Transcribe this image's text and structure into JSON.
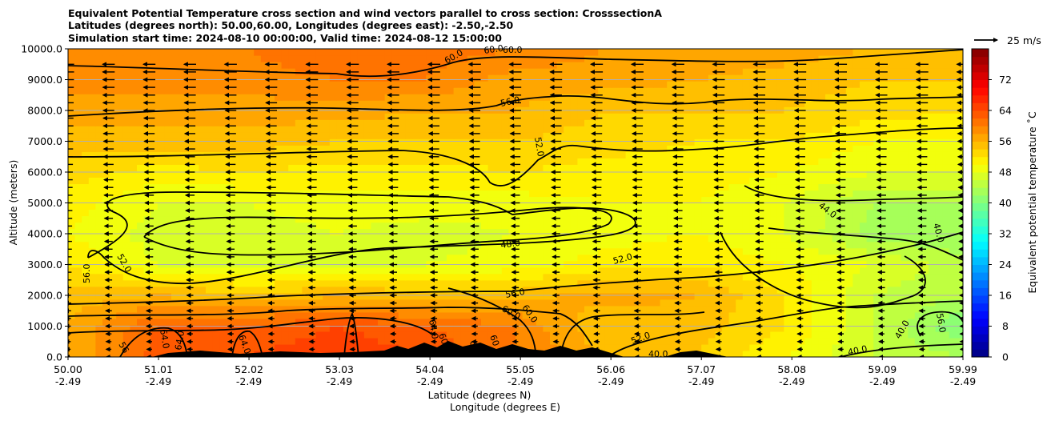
{
  "chart_data": {
    "type": "contourf",
    "title_lines": [
      "Equivalent Potential Temperature cross section and wind vectors parallel to cross section: CrosssectionA",
      "Latitudes (degrees north): 50.00,60.00, Longitudes (degrees east): -2.50,-2.50",
      "Simulation start time: 2024-08-10 00:00:00, Valid time: 2024-08-12 15:00:00"
    ],
    "xlabel": "Latitude (degrees N)",
    "xlabel2": "Longitude (degrees E)",
    "ylabel": "Altitude (meters)",
    "x_ticks": [
      {
        "lat": 50.0,
        "lat_label": "50.00",
        "lon_label": "-2.49"
      },
      {
        "lat": 51.01,
        "lat_label": "51.01",
        "lon_label": "-2.49"
      },
      {
        "lat": 52.02,
        "lat_label": "52.02",
        "lon_label": "-2.49"
      },
      {
        "lat": 53.03,
        "lat_label": "53.03",
        "lon_label": "-2.49"
      },
      {
        "lat": 54.04,
        "lat_label": "54.04",
        "lon_label": "-2.49"
      },
      {
        "lat": 55.05,
        "lat_label": "55.05",
        "lon_label": "-2.49"
      },
      {
        "lat": 56.06,
        "lat_label": "56.06",
        "lon_label": "-2.49"
      },
      {
        "lat": 57.07,
        "lat_label": "57.07",
        "lon_label": "-2.49"
      },
      {
        "lat": 58.08,
        "lat_label": "58.08",
        "lon_label": "-2.49"
      },
      {
        "lat": 59.09,
        "lat_label": "59.09",
        "lon_label": "-2.49"
      },
      {
        "lat": 59.99,
        "lat_label": "59.99",
        "lon_label": "-2.49"
      }
    ],
    "xlim": [
      50.0,
      59.99
    ],
    "y_ticks": [
      0,
      1000,
      2000,
      3000,
      4000,
      5000,
      6000,
      7000,
      8000,
      9000,
      10000
    ],
    "y_tick_labels": [
      "0.0",
      "1000.0",
      "2000.0",
      "3000.0",
      "4000.0",
      "5000.0",
      "6000.0",
      "7000.0",
      "8000.0",
      "9000.0",
      "10000.0"
    ],
    "ylim": [
      0,
      10000
    ],
    "grid_y": true,
    "colorbar": {
      "label": "Equivalent potential temperature $^\\circ$C",
      "label_text": "Equivalent potential temperature ˚C",
      "range": [
        0,
        80
      ],
      "ticks": [
        0,
        8,
        16,
        24,
        32,
        40,
        48,
        56,
        64,
        72
      ],
      "tick_labels": [
        "0",
        "8",
        "16",
        "24",
        "32",
        "40",
        "48",
        "56",
        "64",
        "72"
      ],
      "colormap": "jet"
    },
    "quiver_key": {
      "label": "25 m/s",
      "speed": 25
    },
    "background_field_samples": {
      "lat": [
        50.0,
        51.0,
        52.0,
        53.0,
        54.0,
        55.0,
        56.0,
        57.0,
        58.0,
        59.0,
        60.0
      ],
      "altitude": [
        0,
        1000,
        2000,
        3000,
        4000,
        5000,
        6000,
        7000,
        8000,
        9000,
        10000
      ],
      "theta_e": [
        [
          56,
          63,
          64,
          66,
          64,
          60,
          56,
          54,
          50,
          46,
          44
        ],
        [
          56,
          62,
          62,
          64,
          62,
          60,
          54,
          55,
          52,
          46,
          40
        ],
        [
          55,
          56,
          55,
          56,
          55,
          55,
          57,
          56,
          52,
          46,
          44
        ],
        [
          52,
          48,
          47,
          47,
          48,
          49,
          51,
          52,
          50,
          48,
          45
        ],
        [
          50,
          47,
          47,
          48,
          47,
          48,
          49,
          50,
          48,
          43,
          42
        ],
        [
          51,
          48,
          48,
          49,
          49,
          49,
          50,
          50,
          48,
          44,
          44
        ],
        [
          53,
          51,
          52,
          51,
          51,
          52,
          51,
          51,
          50,
          48,
          48
        ],
        [
          55,
          55,
          55,
          54,
          54,
          54,
          53,
          52,
          52,
          50,
          50
        ],
        [
          57,
          57,
          57,
          57,
          56,
          56,
          54,
          54,
          54,
          53,
          52
        ],
        [
          59,
          59,
          59,
          60,
          60,
          57,
          57,
          56,
          55,
          54,
          54
        ],
        [
          60,
          60,
          60,
          62,
          61,
          60,
          58,
          58,
          57,
          56,
          55
        ]
      ]
    },
    "contour_levels": [
      40,
      44,
      48,
      52,
      56,
      60,
      64
    ],
    "contour_labels_visible": [
      "60.0",
      "60.0",
      "60.0",
      "56.0",
      "52.0",
      "44.0",
      "48.0",
      "52.0",
      "52.0",
      "56.0",
      "40.0",
      "56.0",
      "60.0",
      "60.0",
      "40.0",
      "52.0",
      "64.0",
      "60.0",
      "40.0",
      "56",
      "40.0",
      "64.0",
      "64.0",
      "64.0",
      "60.0",
      "56.0",
      "60"
    ],
    "wind": {
      "direction": "southward (toward decreasing latitude)",
      "typical_speed_upper_ms": 15,
      "typical_speed_lower_ms": 6
    }
  }
}
